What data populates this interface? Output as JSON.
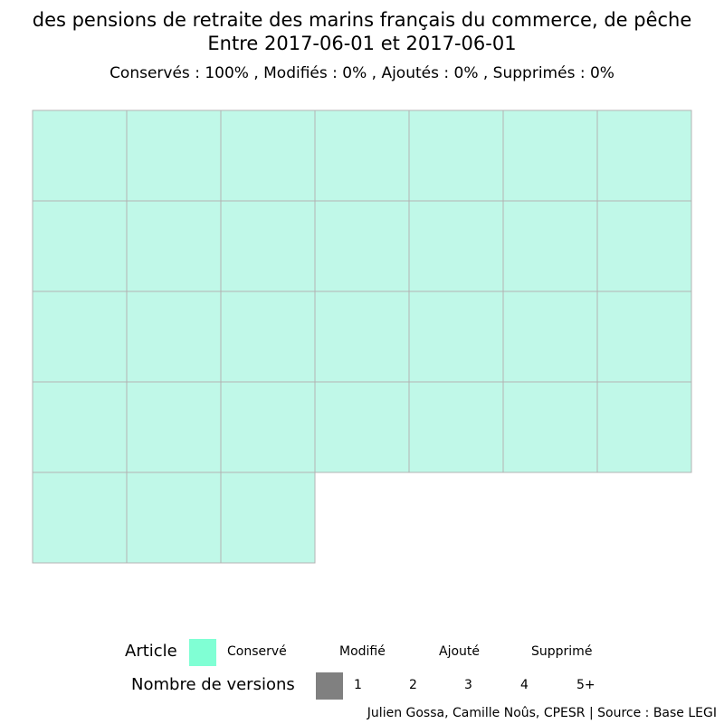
{
  "chart_data": {
    "type": "waffle",
    "title": "des pensions de retraite des marins français du commerce, de pêche",
    "subtitle_dates": "Entre 2017-06-01 et 2017-06-01",
    "stats": "Conservés :  100% , Modifiés :  0% , Ajoutés :  0% , Supprimés :  0%",
    "categories": [
      "Conservé",
      "Modifié",
      "Ajouté",
      "Supprimé"
    ],
    "counts": {
      "Conservé": 31,
      "Modifié": 0,
      "Ajouté": 0,
      "Supprimé": 0
    },
    "cells": [
      "Conservé",
      "Conservé",
      "Conservé",
      "Conservé",
      "Conservé",
      "Conservé",
      "Conservé",
      "Conservé",
      "Conservé",
      "Conservé",
      "Conservé",
      "Conservé",
      "Conservé",
      "Conservé",
      "Conservé",
      "Conservé",
      "Conservé",
      "Conservé",
      "Conservé",
      "Conservé",
      "Conservé",
      "Conservé",
      "Conservé",
      "Conservé",
      "Conservé",
      "Conservé",
      "Conservé",
      "Conservé",
      "Conservé",
      "Conservé",
      "Conservé"
    ],
    "columns": 7,
    "colors": {
      "Conservé": "#c0f8e8",
      "legend_conserve": "#80ffd4",
      "versions": "#808080",
      "cell_border": "#b3b3b3"
    },
    "legend": {
      "article_title": "Article",
      "article_labels": [
        "Conservé",
        "Modifié",
        "Ajouté",
        "Supprimé"
      ],
      "versions_title": "Nombre de versions",
      "versions_labels": [
        "1",
        "2",
        "3",
        "4",
        "5+"
      ]
    },
    "caption": "Julien Gossa, Camille Noûs, CPESR  |  Source : Base LEGI"
  }
}
